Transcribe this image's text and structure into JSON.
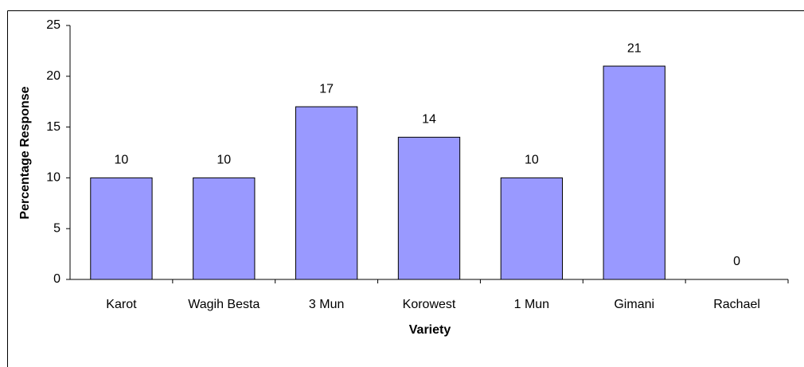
{
  "chart_data": {
    "type": "bar",
    "x_label": "Variety",
    "y_label": "Percentage Response",
    "categories": [
      "Karot",
      "Wagih Besta",
      "3 Mun",
      "Korowest",
      "1 Mun",
      "Gimani",
      "Rachael"
    ],
    "values": [
      10,
      10,
      17,
      14,
      10,
      21,
      0
    ],
    "color": "#9999ff",
    "ylim": [
      0,
      25
    ],
    "yticks": [
      0,
      5,
      10,
      15,
      20,
      25
    ],
    "grid": false
  }
}
